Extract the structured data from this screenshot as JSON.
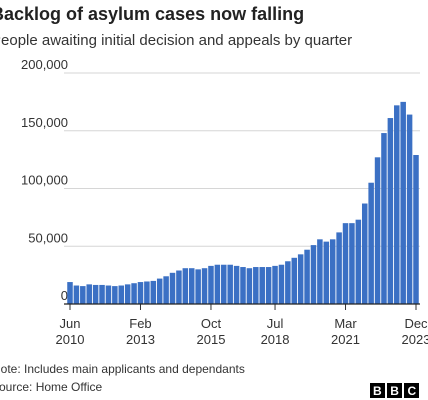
{
  "chart_data": {
    "type": "bar",
    "title": "Backlog of asylum cases now falling",
    "subtitle": "People awaiting initial decision and appeals by quarter",
    "categories": [
      "Jun 2010",
      null,
      null,
      null,
      null,
      null,
      null,
      null,
      null,
      null,
      null,
      "Feb 2013",
      null,
      null,
      null,
      null,
      null,
      null,
      null,
      null,
      null,
      null,
      "Oct 2015",
      null,
      null,
      null,
      null,
      null,
      null,
      null,
      null,
      null,
      "Jul 2018",
      null,
      null,
      null,
      null,
      null,
      null,
      null,
      null,
      null,
      null,
      "Mar 2021",
      null,
      null,
      null,
      null,
      null,
      null,
      null,
      null,
      null,
      null,
      "Dec 2023"
    ],
    "values": [
      19000,
      16000,
      15500,
      17000,
      16500,
      16500,
      16000,
      15500,
      16000,
      17000,
      18000,
      19000,
      19500,
      20000,
      22000,
      24000,
      27000,
      29000,
      31000,
      31000,
      30000,
      31000,
      33000,
      34000,
      34000,
      34000,
      33000,
      32000,
      31000,
      32000,
      32000,
      32000,
      33000,
      34000,
      37000,
      40000,
      43000,
      47000,
      51000,
      56000,
      54000,
      56000,
      62000,
      70000,
      70000,
      73000,
      87000,
      105000,
      127000,
      148000,
      161000,
      172000,
      175000,
      164000,
      129000
    ],
    "color": "#3b70c4",
    "ylim": [
      0,
      200000
    ],
    "yticks": [
      0,
      {
        "value": 50000,
        "label": "50,000"
      },
      {
        "value": 100000,
        "label": "100,000"
      },
      {
        "value": 150000,
        "label": "150,000"
      },
      {
        "value": 200000,
        "label": "200,000"
      }
    ],
    "grid": true,
    "note": "Note: Includes main applicants and dependants",
    "source": "Source: Home Office",
    "logo": "BBC"
  }
}
